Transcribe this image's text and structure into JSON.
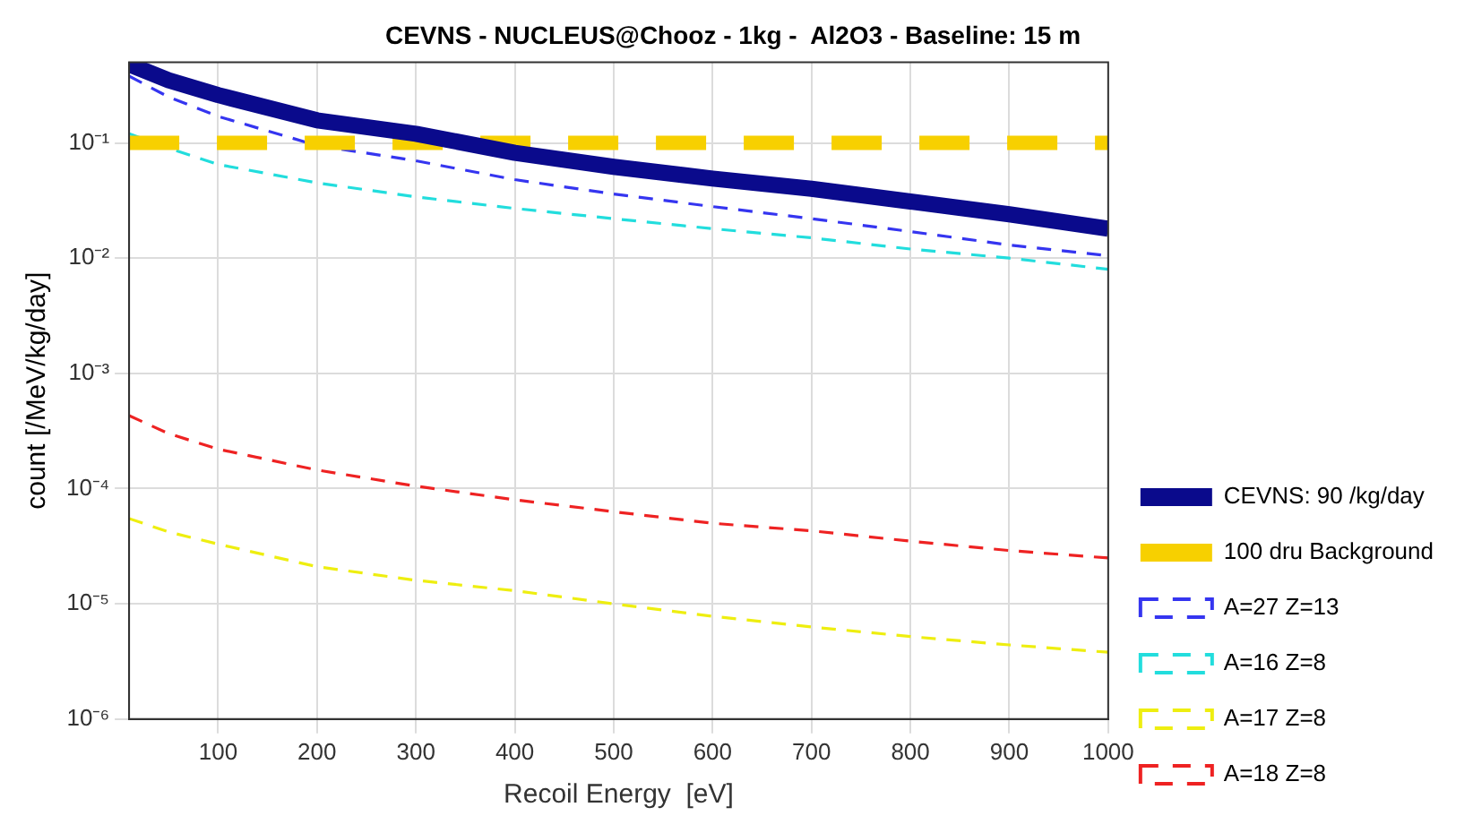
{
  "chart_data": {
    "type": "line",
    "title": "CEVNS - NUCLEUS@Chooz - 1kg -  Al2O3 - Baseline: 15 m",
    "xlabel": "Recoil Energy  [eV]",
    "ylabel": "count [/MeV/kg/day]",
    "x": [
      10,
      50,
      100,
      200,
      300,
      400,
      500,
      600,
      700,
      800,
      900,
      1000
    ],
    "series": [
      {
        "name": "CEVNS: 90 /kg/day",
        "color": "#0a0a8c",
        "line_style": "solid",
        "values": [
          0.48,
          0.35,
          0.26,
          0.157,
          0.12,
          0.082,
          0.062,
          0.049,
          0.04,
          0.031,
          0.024,
          0.018
        ]
      },
      {
        "name": "100 dru Background",
        "color": "#f7d000",
        "line_style": "dashed",
        "x": [
          10,
          1000
        ],
        "values": [
          0.1,
          0.1
        ]
      },
      {
        "name": "A=27 Z=13",
        "color": "#3535f0",
        "line_style": "dashed",
        "values": [
          0.38,
          0.25,
          0.17,
          0.095,
          0.07,
          0.048,
          0.036,
          0.028,
          0.022,
          0.017,
          0.013,
          0.0105
        ]
      },
      {
        "name": "A=16 Z=8",
        "color": "#22dddd",
        "line_style": "dashed",
        "values": [
          0.12,
          0.09,
          0.065,
          0.045,
          0.034,
          0.027,
          0.022,
          0.018,
          0.015,
          0.012,
          0.01,
          0.008
        ]
      },
      {
        "name": "A=17 Z=8",
        "color": "#eeee10",
        "line_style": "dashed",
        "values": [
          5.5e-05,
          4.2e-05,
          3.3e-05,
          2.1e-05,
          1.6e-05,
          1.3e-05,
          1e-05,
          7.8e-06,
          6.3e-06,
          5.2e-06,
          4.4e-06,
          3.8e-06
        ]
      },
      {
        "name": "A=18 Z=8",
        "color": "#ee2222",
        "line_style": "dashed",
        "values": [
          0.00043,
          0.0003,
          0.00022,
          0.000145,
          0.000105,
          8e-05,
          6.3e-05,
          5e-05,
          4.3e-05,
          3.5e-05,
          2.9e-05,
          2.5e-05
        ]
      }
    ],
    "log": "y",
    "xlim": [
      10,
      1000
    ],
    "xticks": [
      100,
      200,
      300,
      400,
      500,
      600,
      700,
      800,
      900,
      1000
    ],
    "ylim": [
      1e-06,
      0.5
    ],
    "yticks": [
      {
        "value": 1e-06,
        "label": "10⁻⁶"
      },
      {
        "value": 1e-05,
        "label": "10⁻⁵"
      },
      {
        "value": 0.0001,
        "label": "10⁻⁴"
      },
      {
        "value": 0.001,
        "label": "10⁻³"
      },
      {
        "value": 0.01,
        "label": "10⁻²"
      },
      {
        "value": 0.1,
        "label": "10⁻¹"
      }
    ],
    "grid": true,
    "legend": "bottom right",
    "marker": "none"
  }
}
